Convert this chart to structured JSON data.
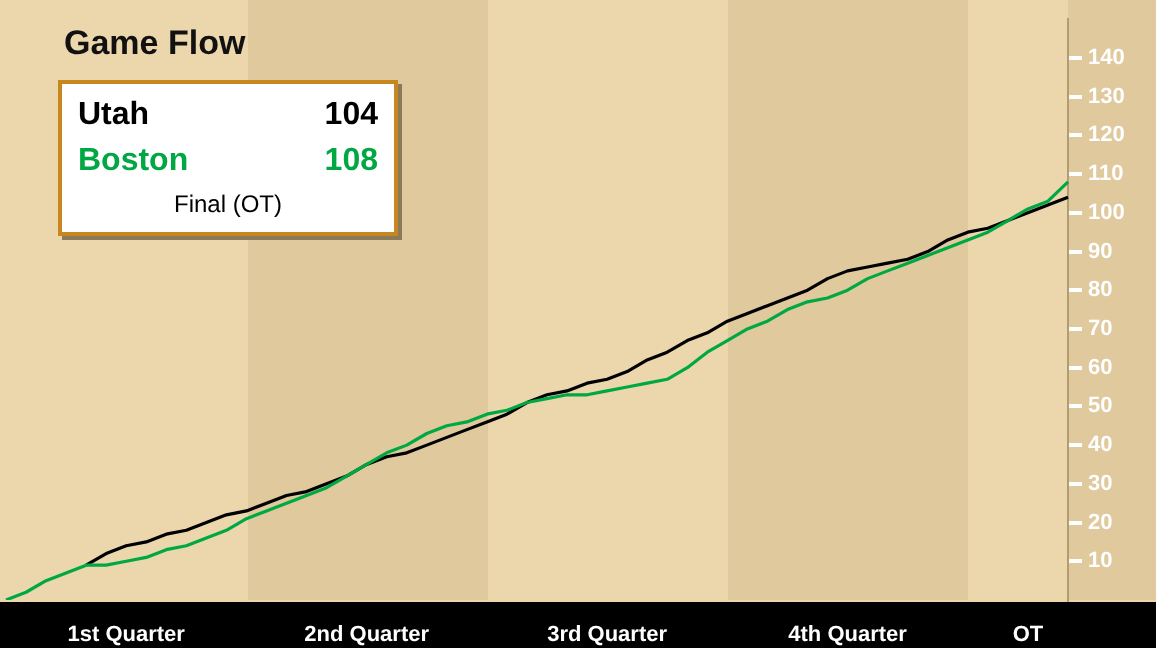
{
  "chart_data": {
    "type": "line",
    "title": "Game Flow",
    "categories": [
      null,
      null,
      null,
      null,
      null,
      null,
      "1st Quarter",
      null,
      null,
      null,
      null,
      null,
      null,
      null,
      null,
      null,
      null,
      null,
      "2nd Quarter",
      null,
      null,
      null,
      null,
      null,
      null,
      null,
      null,
      null,
      null,
      null,
      "3rd Quarter",
      null,
      null,
      null,
      null,
      null,
      null,
      null,
      null,
      null,
      null,
      null,
      "4th Quarter",
      null,
      null,
      null,
      null,
      null,
      null,
      null,
      null,
      "OT",
      null,
      null
    ],
    "ylim": [
      0,
      150
    ],
    "yticks": [
      10,
      20,
      30,
      40,
      50,
      60,
      70,
      80,
      90,
      100,
      110,
      120,
      130,
      140
    ],
    "series": [
      {
        "name": "Utah",
        "color": "#000000",
        "values": [
          null,
          null,
          null,
          null,
          9,
          12,
          14,
          15,
          17,
          18,
          20,
          22,
          23,
          25,
          27,
          28,
          30,
          32,
          35,
          37,
          38,
          40,
          42,
          44,
          46,
          48,
          51,
          53,
          54,
          56,
          57,
          59,
          62,
          64,
          67,
          69,
          72,
          74,
          76,
          78,
          80,
          83,
          85,
          86,
          87,
          88,
          90,
          93,
          95,
          96,
          98,
          100,
          102,
          104
        ]
      },
      {
        "name": "Boston",
        "color": "#00a843",
        "values": [
          0,
          2,
          5,
          7,
          9,
          9,
          10,
          11,
          13,
          14,
          16,
          18,
          21,
          23,
          25,
          27,
          29,
          32,
          35,
          38,
          40,
          43,
          45,
          46,
          48,
          49,
          51,
          52,
          53,
          53,
          54,
          55,
          56,
          57,
          60,
          64,
          67,
          70,
          72,
          75,
          77,
          78,
          80,
          83,
          85,
          87,
          89,
          91,
          93,
          95,
          98,
          101,
          103,
          108
        ]
      }
    ],
    "annotations": [
      "104",
      "108",
      "Final (OT)"
    ],
    "legend": "top left"
  }
}
